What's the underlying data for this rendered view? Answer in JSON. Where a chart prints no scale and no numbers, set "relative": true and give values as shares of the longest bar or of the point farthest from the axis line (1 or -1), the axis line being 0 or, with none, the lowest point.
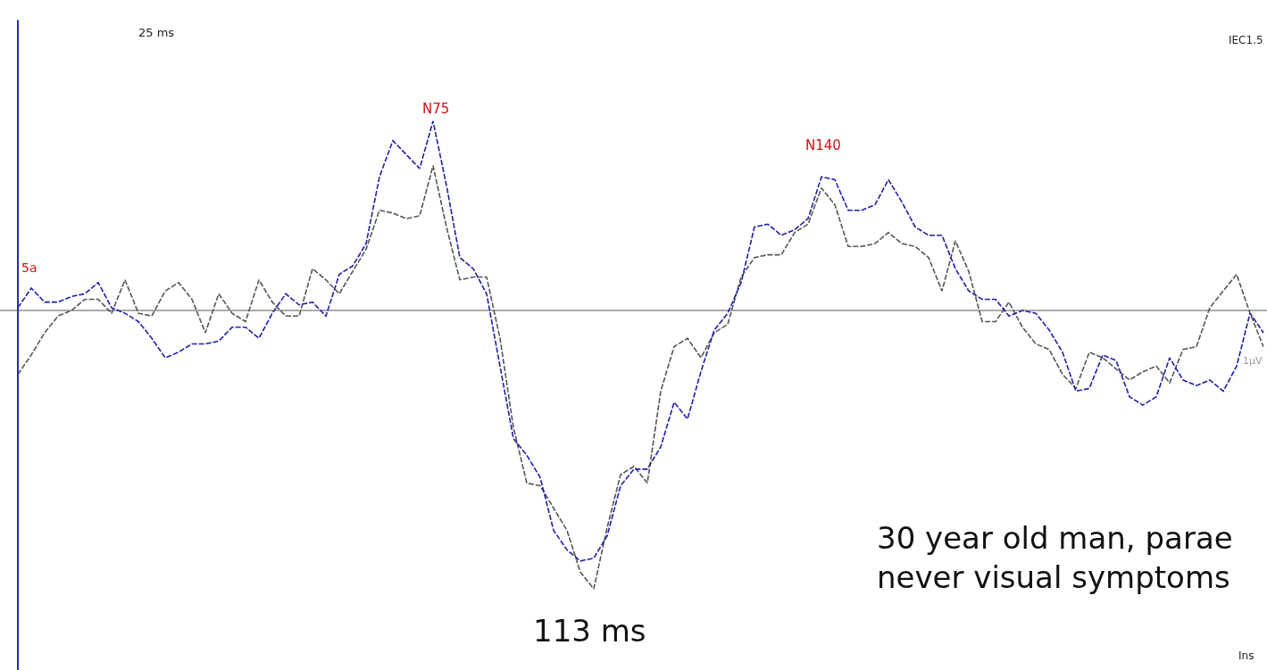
{
  "chart_data": {
    "type": "line",
    "relative": true,
    "line_style": "dashed",
    "marker": "none",
    "categories": [
      null,
      null,
      null,
      null,
      null,
      null,
      null,
      null,
      null,
      null,
      null,
      null,
      null,
      null,
      null,
      null,
      null,
      null,
      null,
      null,
      null,
      null,
      null,
      null,
      null,
      null,
      null,
      null,
      null,
      null,
      null,
      null,
      null,
      null,
      null,
      null,
      null,
      null,
      null,
      null,
      null,
      null,
      null,
      null,
      null,
      null,
      null,
      null,
      null,
      null,
      null,
      null,
      null,
      null,
      null,
      null,
      null,
      null,
      null,
      null,
      null,
      null,
      null,
      null,
      null,
      null,
      null,
      null,
      null,
      null,
      null,
      null,
      null,
      null,
      null,
      null,
      null,
      null,
      null,
      null,
      null,
      null,
      null,
      null,
      null,
      null,
      null,
      null,
      null,
      null,
      null,
      null,
      null,
      null
    ],
    "series": [
      {
        "color": "#555555",
        "values": [
          -0.23,
          -0.16,
          -0.08,
          -0.02,
          0.0,
          0.04,
          0.04,
          -0.01,
          0.11,
          -0.01,
          -0.02,
          0.07,
          0.1,
          0.04,
          -0.08,
          0.06,
          -0.01,
          -0.04,
          0.11,
          0.03,
          -0.02,
          -0.02,
          0.15,
          0.11,
          0.06,
          0.14,
          0.22,
          0.36,
          0.35,
          0.33,
          0.34,
          0.52,
          0.3,
          0.11,
          0.12,
          0.12,
          -0.1,
          -0.42,
          -0.62,
          -0.63,
          -0.71,
          -0.79,
          -0.94,
          -1.0,
          -0.78,
          -0.59,
          -0.56,
          -0.62,
          -0.29,
          -0.13,
          -0.1,
          -0.17,
          -0.08,
          -0.05,
          0.12,
          0.19,
          0.2,
          0.2,
          0.28,
          0.31,
          0.44,
          0.38,
          0.23,
          0.23,
          0.24,
          0.28,
          0.24,
          0.23,
          0.19,
          0.07,
          0.25,
          0.14,
          -0.04,
          -0.04,
          0.03,
          -0.06,
          -0.12,
          -0.14,
          -0.23,
          -0.28,
          -0.15,
          -0.17,
          -0.21,
          -0.25,
          -0.22,
          -0.2,
          -0.26,
          -0.14,
          -0.13,
          0.01,
          0.07,
          0.13,
          -0.01,
          -0.13
        ]
      },
      {
        "color": "#1f1fa8",
        "values": [
          0.01,
          0.08,
          0.03,
          0.03,
          0.05,
          0.06,
          0.1,
          0.01,
          -0.01,
          -0.04,
          -0.1,
          -0.17,
          -0.15,
          -0.12,
          -0.12,
          -0.11,
          -0.06,
          -0.06,
          -0.1,
          -0.01,
          0.06,
          0.02,
          0.03,
          -0.02,
          0.13,
          0.16,
          0.24,
          0.48,
          0.61,
          0.56,
          0.51,
          0.68,
          0.45,
          0.19,
          0.15,
          0.06,
          -0.2,
          -0.46,
          -0.52,
          -0.6,
          -0.79,
          -0.86,
          -0.9,
          -0.89,
          -0.81,
          -0.63,
          -0.57,
          -0.57,
          -0.49,
          -0.33,
          -0.39,
          -0.22,
          -0.07,
          -0.01,
          0.1,
          0.3,
          0.31,
          0.27,
          0.29,
          0.33,
          0.48,
          0.47,
          0.36,
          0.36,
          0.38,
          0.47,
          0.39,
          0.3,
          0.27,
          0.27,
          0.15,
          0.07,
          0.04,
          0.04,
          -0.02,
          0.0,
          -0.01,
          -0.07,
          -0.15,
          -0.29,
          -0.28,
          -0.16,
          -0.18,
          -0.31,
          -0.34,
          -0.31,
          -0.17,
          -0.25,
          -0.27,
          -0.25,
          -0.29,
          -0.2,
          -0.01,
          -0.08
        ]
      }
    ],
    "annotations": [
      "25 ms",
      "IEC1.5",
      "5a",
      "N75",
      "N140",
      "1µV",
      "113 ms",
      "30 year old man, parae",
      "never visual symptoms",
      "Ins"
    ]
  }
}
